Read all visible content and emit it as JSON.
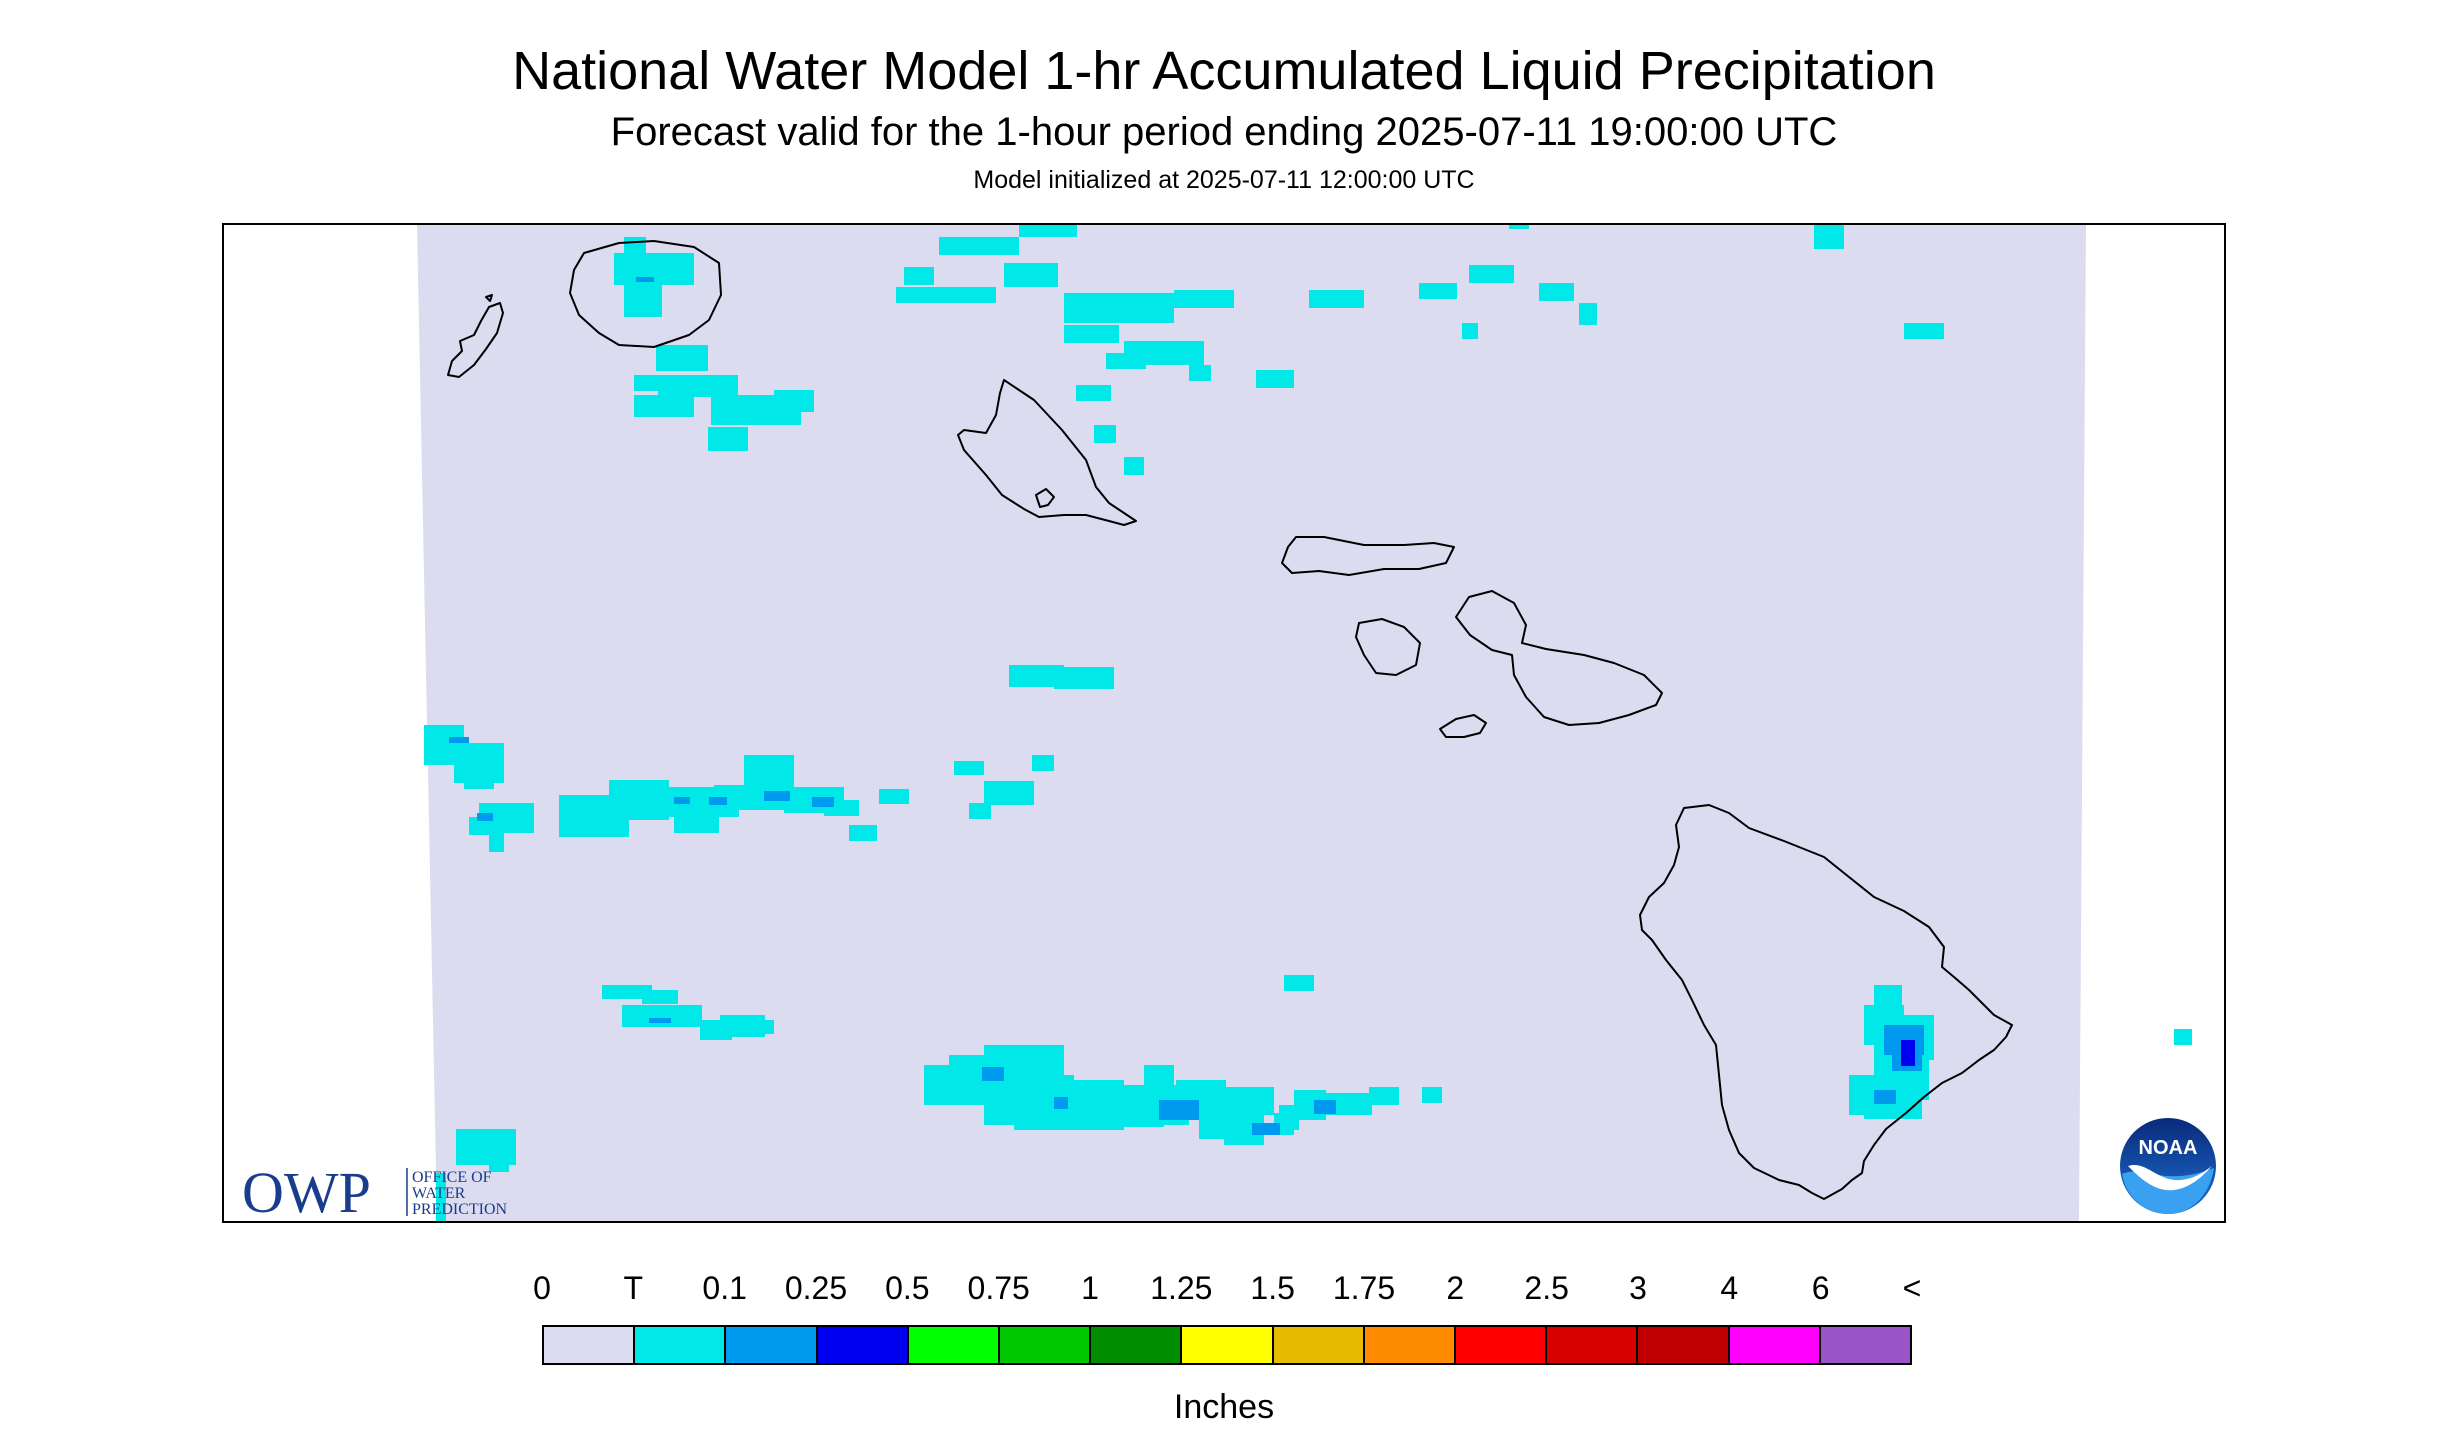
{
  "titles": {
    "main": "National Water Model 1-hr Accumulated Liquid Precipitation",
    "valid": "Forecast valid for the 1-hour period ending 2025-07-11 19:00:00 UTC",
    "init": "Model initialized at 2025-07-11 12:00:00 UTC"
  },
  "logos": {
    "owp_letters": "OWP",
    "owp_text_1": "OFFICE OF",
    "owp_text_2": "WATER",
    "owp_text_3": "PREDICTION",
    "noaa_letters": "NOAA"
  },
  "legend": {
    "labels": [
      "0",
      "T",
      "0.1",
      "0.25",
      "0.5",
      "0.75",
      "1",
      "1.25",
      "1.5",
      "1.75",
      "2",
      "2.5",
      "3",
      "4",
      "6",
      "<"
    ],
    "colors": [
      "#dcdcf0",
      "#00e8e8",
      "#0099f0",
      "#0000f0",
      "#00ff00",
      "#00c800",
      "#008e00",
      "#ffff00",
      "#e6bc00",
      "#ff8c00",
      "#ff0000",
      "#d60000",
      "#c00000",
      "#ff00ff",
      "#9955c8"
    ],
    "units": "Inches"
  },
  "colors": {
    "background": "#dcdcf0",
    "trace": "#00e8e8",
    "light_blue": "#0099f0",
    "blue": "#0000f0",
    "coast": "#000000",
    "owp_blue": "#1a3c8c"
  },
  "map": {
    "islands": [
      "Niihau",
      "Kauai",
      "Oahu",
      "Molokai",
      "Lanai",
      "Maui",
      "Kahoolawe",
      "Hawaii"
    ]
  }
}
